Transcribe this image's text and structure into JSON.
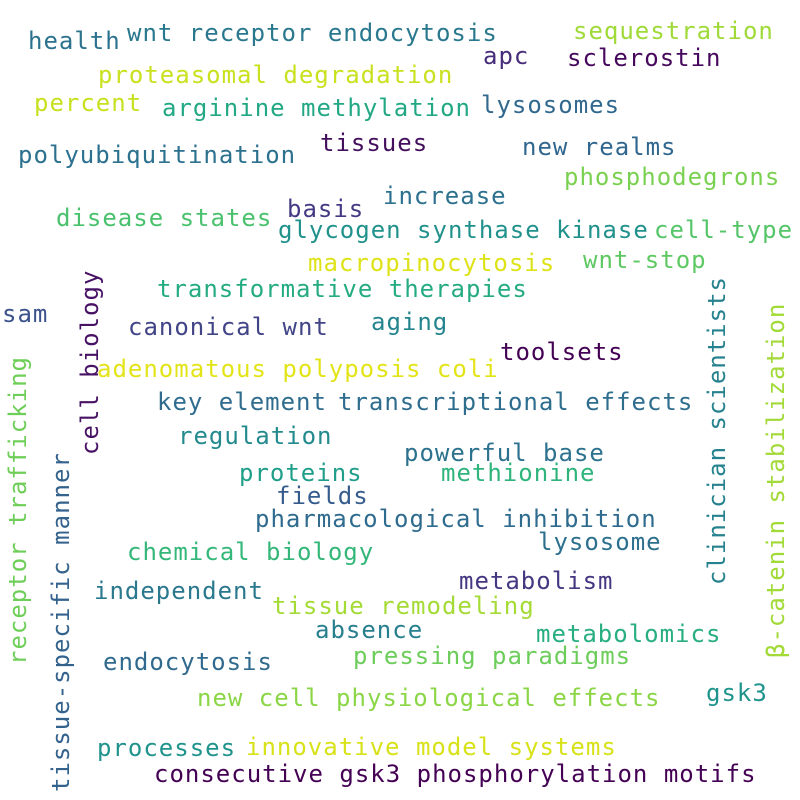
{
  "words": [
    {
      "text": "health",
      "color": "#2c728e"
    },
    {
      "text": "wnt receptor endocytosis",
      "color": "#2a788e"
    },
    {
      "text": "sequestration",
      "color": "#a0da39"
    },
    {
      "text": "apc",
      "color": "#472c7a"
    },
    {
      "text": "sclerostin",
      "color": "#46085c"
    },
    {
      "text": "proteasomal degradation",
      "color": "#cae11f"
    },
    {
      "text": "percent",
      "color": "#c8e020"
    },
    {
      "text": "arginine methylation",
      "color": "#22a884"
    },
    {
      "text": "lysosomes",
      "color": "#31688e"
    },
    {
      "text": "tissues",
      "color": "#440f5c"
    },
    {
      "text": "polyubiquitination",
      "color": "#2c718e"
    },
    {
      "text": "new realms",
      "color": "#31678e"
    },
    {
      "text": "phosphodegrons",
      "color": "#7ad151"
    },
    {
      "text": "increase",
      "color": "#2d718e"
    },
    {
      "text": "basis",
      "color": "#443a83"
    },
    {
      "text": "disease states",
      "color": "#4ac16d"
    },
    {
      "text": "glycogen synthase kinase",
      "color": "#21918c"
    },
    {
      "text": "cell-type",
      "color": "#54c568"
    },
    {
      "text": "macropinocytosis",
      "color": "#dde318"
    },
    {
      "text": "wnt-stop",
      "color": "#5ec962"
    },
    {
      "text": "transformative therapies",
      "color": "#25ab82"
    },
    {
      "text": "sam",
      "color": "#3b528b"
    },
    {
      "text": "canonical wnt",
      "color": "#414487"
    },
    {
      "text": "aging",
      "color": "#25858e"
    },
    {
      "text": "toolsets",
      "color": "#440154"
    },
    {
      "text": "adenomatous polyposis coli",
      "color": "#e3e418"
    },
    {
      "text": "key element",
      "color": "#2f6c8e"
    },
    {
      "text": "transcriptional effects",
      "color": "#2e6d8e"
    },
    {
      "text": "regulation",
      "color": "#238a8d"
    },
    {
      "text": "powerful base",
      "color": "#2c718e"
    },
    {
      "text": "proteins",
      "color": "#1f9e89"
    },
    {
      "text": "methionine",
      "color": "#2fb47c"
    },
    {
      "text": "fields",
      "color": "#365c8d"
    },
    {
      "text": "pharmacological inhibition",
      "color": "#2f6b8e"
    },
    {
      "text": "chemical biology",
      "color": "#35b779"
    },
    {
      "text": "lysosome",
      "color": "#2d708e"
    },
    {
      "text": "metabolism",
      "color": "#453781"
    },
    {
      "text": "independent",
      "color": "#2a788e"
    },
    {
      "text": "tissue remodeling",
      "color": "#a5db36"
    },
    {
      "text": "absence",
      "color": "#277f8e"
    },
    {
      "text": "metabolomics",
      "color": "#28ae80"
    },
    {
      "text": "endocytosis",
      "color": "#306a8e"
    },
    {
      "text": "pressing paradigms",
      "color": "#6ccd5a"
    },
    {
      "text": "new cell physiological effects",
      "color": "#8bd646"
    },
    {
      "text": "gsk3",
      "color": "#1f948c"
    },
    {
      "text": "processes",
      "color": "#20938c"
    },
    {
      "text": "innovative model systems",
      "color": "#d8e219"
    },
    {
      "text": "consecutive gsk3 phosphorylation motifs",
      "color": "#440154"
    },
    {
      "text": "cell biology",
      "color": "#471164"
    },
    {
      "text": "receptor trafficking",
      "color": "#6ece58"
    },
    {
      "text": "tissue-specific manner",
      "color": "#33628d"
    },
    {
      "text": "clinician scientists",
      "color": "#26828e"
    },
    {
      "text": "β-catenin stabilization",
      "color": "#a2da37"
    }
  ]
}
